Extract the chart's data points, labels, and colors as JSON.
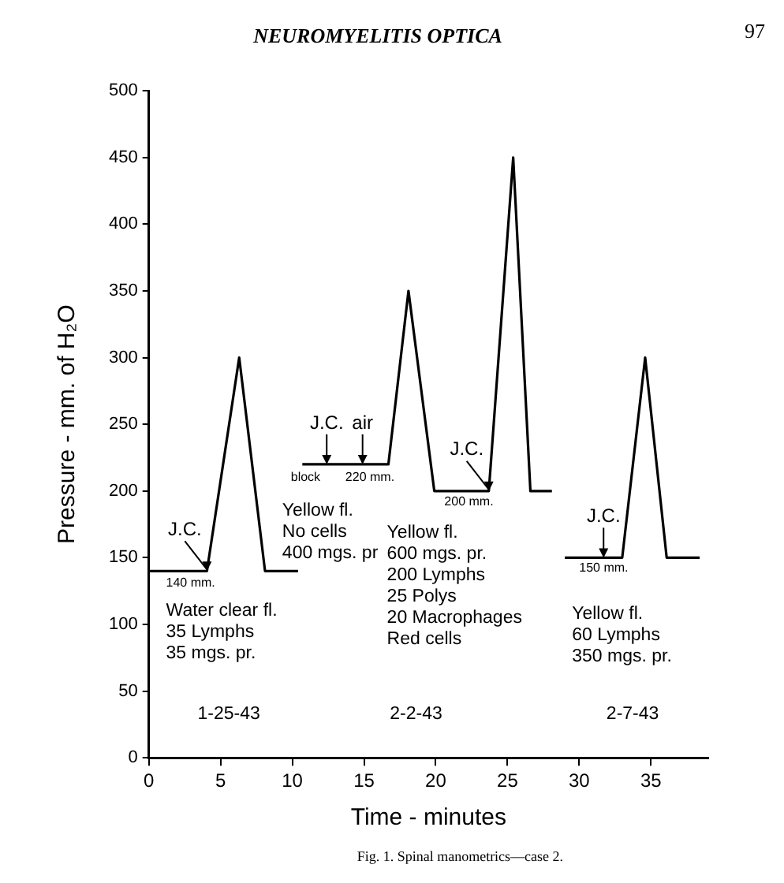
{
  "chart_data": {
    "type": "line",
    "title": "NEUROMYELITIS OPTICA",
    "xlabel": "Time - minutes",
    "ylabel": "Pressure - mm. of H₂O",
    "xlim": [
      0,
      39
    ],
    "xticks": [
      0,
      5,
      10,
      15,
      20,
      25,
      30,
      35
    ],
    "ylim": [
      0,
      500
    ],
    "yticks": [
      0,
      50,
      100,
      150,
      200,
      250,
      300,
      350,
      400,
      450,
      500
    ],
    "grid": false,
    "legend": false,
    "marker": "none",
    "line_style": "solid",
    "series": [
      {
        "color": "#000000",
        "x": [
          0,
          4.05,
          6.3,
          8.1,
          10.4
        ],
        "values": [
          140,
          140,
          300,
          140,
          140
        ]
      },
      {
        "color": "#000000",
        "x": [
          10.7,
          16.7,
          18.1,
          19.9,
          23.7,
          25.4,
          26.6,
          28.1
        ],
        "values": [
          220,
          220,
          350,
          200,
          200,
          450,
          200,
          200
        ]
      },
      {
        "color": "#000000",
        "x": [
          29,
          33,
          34.6,
          36.1,
          38.4
        ],
        "values": [
          150,
          150,
          300,
          150,
          150
        ]
      }
    ],
    "annotations": [
      {
        "text": "J.C.",
        "x": 4.05,
        "y": 140
      },
      {
        "text": "140 mm.",
        "x": 1.2,
        "y": 137
      },
      "Water clear fl.\n35 Lymphs\n35 mgs. pr.",
      {
        "text": "J.C.",
        "x": 12.4,
        "y": 220
      },
      {
        "text": "air",
        "x": 14.9,
        "y": 220
      },
      "block",
      {
        "text": "220 mm.",
        "x": 13.7,
        "y": 216
      },
      {
        "text": "J.C.",
        "x": 23.7,
        "y": 200
      },
      {
        "text": "200 mm.",
        "x": 20.6,
        "y": 198
      },
      "Yellow fl.\nNo cells\n400 mgs. pr",
      "Yellow fl.\n600 mgs. pr.\n200 Lymphs\n25 Polys\n20 Macrophages\nRed cells",
      {
        "text": "J.C.",
        "x": 31.7,
        "y": 150
      },
      {
        "text": "150 mm.",
        "x": 30,
        "y": 148
      },
      "Yellow fl.\n60 Lymphs\n350 mgs. pr.",
      "1-25-43",
      "2-2-43",
      "2-7-43",
      "97",
      "Fig. 1. Spinal manometrics—case 2."
    ]
  }
}
